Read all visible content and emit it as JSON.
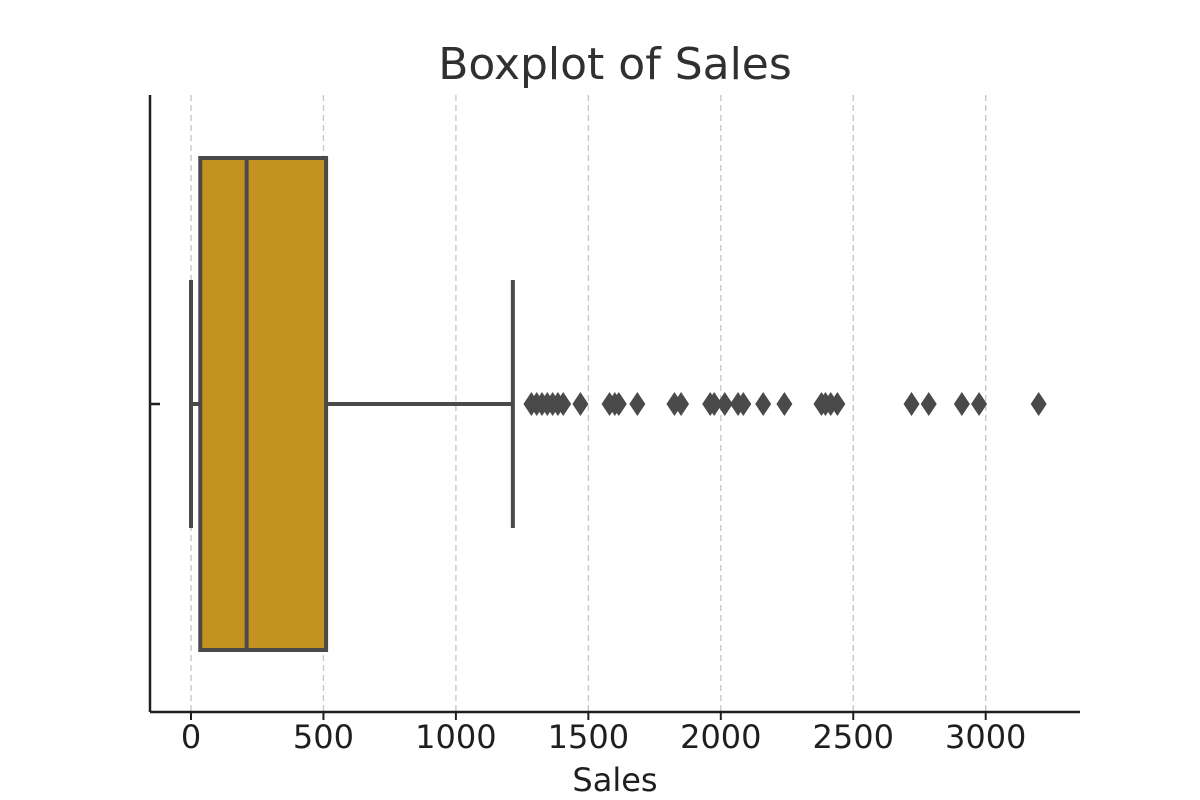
{
  "chart_data": {
    "type": "boxplot",
    "title": "Boxplot of Sales",
    "xlabel": "Sales",
    "ylabel": "",
    "orientation": "horizontal",
    "xlim": [
      -150,
      3350
    ],
    "xticks": [
      0,
      500,
      1000,
      1500,
      2000,
      2500,
      3000
    ],
    "grid": "vertical-dashed",
    "box_color": "#c4921f",
    "line_color": "#4a4a4a",
    "box": {
      "lower_whisker": 0,
      "q1": 35,
      "median": 210,
      "q3": 510,
      "upper_whisker": 1215
    },
    "outliers": [
      1285,
      1305,
      1325,
      1345,
      1365,
      1385,
      1405,
      1470,
      1580,
      1600,
      1615,
      1685,
      1825,
      1850,
      1960,
      1975,
      2015,
      2065,
      2085,
      2160,
      2240,
      2380,
      2395,
      2415,
      2440,
      2720,
      2785,
      2910,
      2975,
      3200
    ]
  }
}
